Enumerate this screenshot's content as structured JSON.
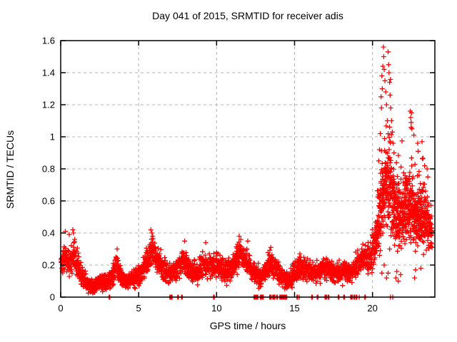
{
  "chart_data": {
    "type": "scatter",
    "title": "Day 041 of 2015, SRMTID for receiver adis",
    "xlabel": "GPS time / hours",
    "ylabel": "SRMTID / TECUs",
    "xlim": [
      0,
      24
    ],
    "ylim": [
      0,
      1.6
    ],
    "xticks": {
      "values": [
        0,
        5,
        10,
        15,
        20
      ],
      "labels": [
        "0",
        "5",
        "10",
        "15",
        "20"
      ]
    },
    "yticks": {
      "values": [
        0,
        0.2,
        0.4,
        0.6,
        0.8,
        1,
        1.2,
        1.4,
        1.6
      ],
      "labels": [
        "0",
        "0.2",
        "0.4",
        "0.6",
        "0.8",
        "1",
        "1.2",
        "1.4",
        "1.6"
      ]
    },
    "grid": {
      "show": true,
      "style": "dashed",
      "color": "#b0b0b0",
      "x_at": [
        5,
        10,
        15,
        20
      ],
      "y_at": [
        0.2,
        0.4,
        0.6,
        0.8,
        1.0,
        1.2,
        1.4
      ]
    },
    "legend": {
      "show": false
    },
    "marker": {
      "shape": "plus",
      "color": "#ff0000",
      "size": 7,
      "stroke_width": 1.3
    },
    "border_color": "#000000",
    "series_name": "SRMTID",
    "summary": "Dense red plus-marker scatter: baseline 0.05-0.4 TECUs over hours 0-20 with small wavy humps, large disturbance hours 20.3-23.8 reaching 1.56 TECUs near hour 20.7-21.1, secondary highs ~1.15 near hour 22.5, clusters of exact-zero values along the x-axis.",
    "scatter_model": {
      "seed": 1337,
      "noise_scale": 1.1,
      "passes": [
        {
          "x0": 0.02,
          "x1": 19.9,
          "per_hour": 120
        },
        {
          "x0": 19.9,
          "x1": 23.82,
          "per_hour": 160
        },
        {
          "x0": 20.25,
          "x1": 23.4,
          "per_hour": 60
        }
      ],
      "profile": [
        [
          0.0,
          0.22,
          0.08
        ],
        [
          0.3,
          0.26,
          0.08
        ],
        [
          0.55,
          0.2,
          0.07
        ],
        [
          0.8,
          0.27,
          0.08
        ],
        [
          1.05,
          0.22,
          0.08
        ],
        [
          1.35,
          0.13,
          0.06
        ],
        [
          1.7,
          0.08,
          0.04
        ],
        [
          2.1,
          0.07,
          0.04
        ],
        [
          2.5,
          0.09,
          0.04
        ],
        [
          2.9,
          0.1,
          0.05
        ],
        [
          3.3,
          0.13,
          0.06
        ],
        [
          3.6,
          0.21,
          0.07
        ],
        [
          3.9,
          0.13,
          0.05
        ],
        [
          4.3,
          0.1,
          0.05
        ],
        [
          4.7,
          0.12,
          0.05
        ],
        [
          5.1,
          0.15,
          0.06
        ],
        [
          5.5,
          0.22,
          0.07
        ],
        [
          5.9,
          0.29,
          0.08
        ],
        [
          6.2,
          0.24,
          0.07
        ],
        [
          6.6,
          0.18,
          0.06
        ],
        [
          7.0,
          0.15,
          0.06
        ],
        [
          7.4,
          0.17,
          0.06
        ],
        [
          7.9,
          0.24,
          0.07
        ],
        [
          8.3,
          0.17,
          0.06
        ],
        [
          8.7,
          0.15,
          0.06
        ],
        [
          9.2,
          0.22,
          0.07
        ],
        [
          9.6,
          0.18,
          0.06
        ],
        [
          10.0,
          0.21,
          0.07
        ],
        [
          10.5,
          0.16,
          0.06
        ],
        [
          11.0,
          0.18,
          0.06
        ],
        [
          11.4,
          0.26,
          0.07
        ],
        [
          11.9,
          0.24,
          0.07
        ],
        [
          12.3,
          0.17,
          0.06
        ],
        [
          12.8,
          0.13,
          0.05
        ],
        [
          13.1,
          0.15,
          0.06
        ],
        [
          13.4,
          0.22,
          0.07
        ],
        [
          13.8,
          0.18,
          0.06
        ],
        [
          14.2,
          0.12,
          0.05
        ],
        [
          14.6,
          0.11,
          0.05
        ],
        [
          15.0,
          0.15,
          0.06
        ],
        [
          15.4,
          0.19,
          0.06
        ],
        [
          15.8,
          0.17,
          0.06
        ],
        [
          16.2,
          0.15,
          0.06
        ],
        [
          16.6,
          0.17,
          0.06
        ],
        [
          17.0,
          0.19,
          0.06
        ],
        [
          17.4,
          0.16,
          0.06
        ],
        [
          17.8,
          0.15,
          0.06
        ],
        [
          18.2,
          0.17,
          0.06
        ],
        [
          18.6,
          0.15,
          0.06
        ],
        [
          19.0,
          0.2,
          0.07
        ],
        [
          19.35,
          0.25,
          0.07
        ],
        [
          19.7,
          0.23,
          0.08
        ],
        [
          20.0,
          0.29,
          0.1
        ],
        [
          20.3,
          0.4,
          0.15
        ],
        [
          20.6,
          0.6,
          0.22
        ],
        [
          20.9,
          0.72,
          0.25
        ],
        [
          21.2,
          0.68,
          0.25
        ],
        [
          21.5,
          0.52,
          0.2
        ],
        [
          21.8,
          0.5,
          0.18
        ],
        [
          22.1,
          0.55,
          0.18
        ],
        [
          22.4,
          0.58,
          0.18
        ],
        [
          22.7,
          0.5,
          0.18
        ],
        [
          23.0,
          0.53,
          0.17
        ],
        [
          23.3,
          0.5,
          0.16
        ],
        [
          23.6,
          0.45,
          0.14
        ],
        [
          23.85,
          0.42,
          0.12
        ]
      ],
      "outliers": [
        [
          0.3,
          0.41
        ],
        [
          0.55,
          0.39
        ],
        [
          0.78,
          0.42
        ],
        [
          0.82,
          0.4
        ],
        [
          3.62,
          0.3
        ],
        [
          5.78,
          0.42
        ],
        [
          5.85,
          0.4
        ],
        [
          5.9,
          0.38
        ],
        [
          7.95,
          0.35
        ],
        [
          9.3,
          0.34
        ],
        [
          11.45,
          0.38
        ],
        [
          11.55,
          0.36
        ],
        [
          12.0,
          0.35
        ],
        [
          13.48,
          0.31
        ],
        [
          19.38,
          0.33
        ],
        [
          20.4,
          0.85
        ],
        [
          20.45,
          0.92
        ],
        [
          20.5,
          1.02
        ],
        [
          20.55,
          1.25
        ],
        [
          20.57,
          1.18
        ],
        [
          20.6,
          1.38
        ],
        [
          20.63,
          1.3
        ],
        [
          20.66,
          1.44
        ],
        [
          20.7,
          1.56
        ],
        [
          20.72,
          1.5
        ],
        [
          20.75,
          1.42
        ],
        [
          20.8,
          1.35
        ],
        [
          20.85,
          1.28
        ],
        [
          20.9,
          1.2
        ],
        [
          20.95,
          1.1
        ],
        [
          21.0,
          1.53
        ],
        [
          21.03,
          1.45
        ],
        [
          21.06,
          1.4
        ],
        [
          21.1,
          1.34
        ],
        [
          21.13,
          1.26
        ],
        [
          21.17,
          1.18
        ],
        [
          21.22,
          1.1
        ],
        [
          21.27,
          1.03
        ],
        [
          21.32,
          0.96
        ],
        [
          21.38,
          0.9
        ],
        [
          22.42,
          1.16
        ],
        [
          22.45,
          1.12
        ],
        [
          22.48,
          1.09
        ],
        [
          22.5,
          1.15
        ],
        [
          22.53,
          1.05
        ],
        [
          22.9,
          0.96
        ],
        [
          22.93,
          0.91
        ],
        [
          23.5,
          0.8
        ],
        [
          23.55,
          0.75
        ],
        [
          20.6,
          0.15
        ],
        [
          20.75,
          0.2
        ],
        [
          20.9,
          0.12
        ],
        [
          21.0,
          0.15
        ],
        [
          21.1,
          0.3
        ],
        [
          21.5,
          0.12
        ],
        [
          21.56,
          0.16
        ],
        [
          21.65,
          0.1
        ],
        [
          21.8,
          0.14
        ],
        [
          22.7,
          0.12
        ],
        [
          22.76,
          0.17
        ],
        [
          23.1,
          0.18
        ]
      ],
      "zero_marks": [
        3.1,
        3.15,
        7.0,
        7.05,
        7.1,
        7.15,
        7.5,
        7.55,
        7.75,
        7.8,
        9.8,
        9.85,
        12.4,
        12.45,
        12.5,
        12.55,
        12.6,
        12.65,
        12.8,
        12.85,
        12.9,
        12.95,
        13.0,
        13.4,
        13.45,
        13.5,
        13.6,
        13.65,
        13.7,
        13.75,
        13.85,
        13.9,
        14.05,
        14.1,
        14.15,
        14.2,
        14.25,
        14.3,
        14.35,
        14.4,
        14.45,
        14.5,
        15.15,
        15.2,
        15.3,
        16.1,
        16.15,
        16.45,
        16.5,
        16.95,
        17.0,
        17.05,
        17.15,
        17.2,
        17.8,
        17.85,
        18.15,
        18.2,
        18.6,
        18.65,
        18.7,
        18.8,
        18.85,
        18.95,
        19.0,
        19.15,
        19.5,
        19.55,
        21.15,
        21.3
      ]
    }
  }
}
